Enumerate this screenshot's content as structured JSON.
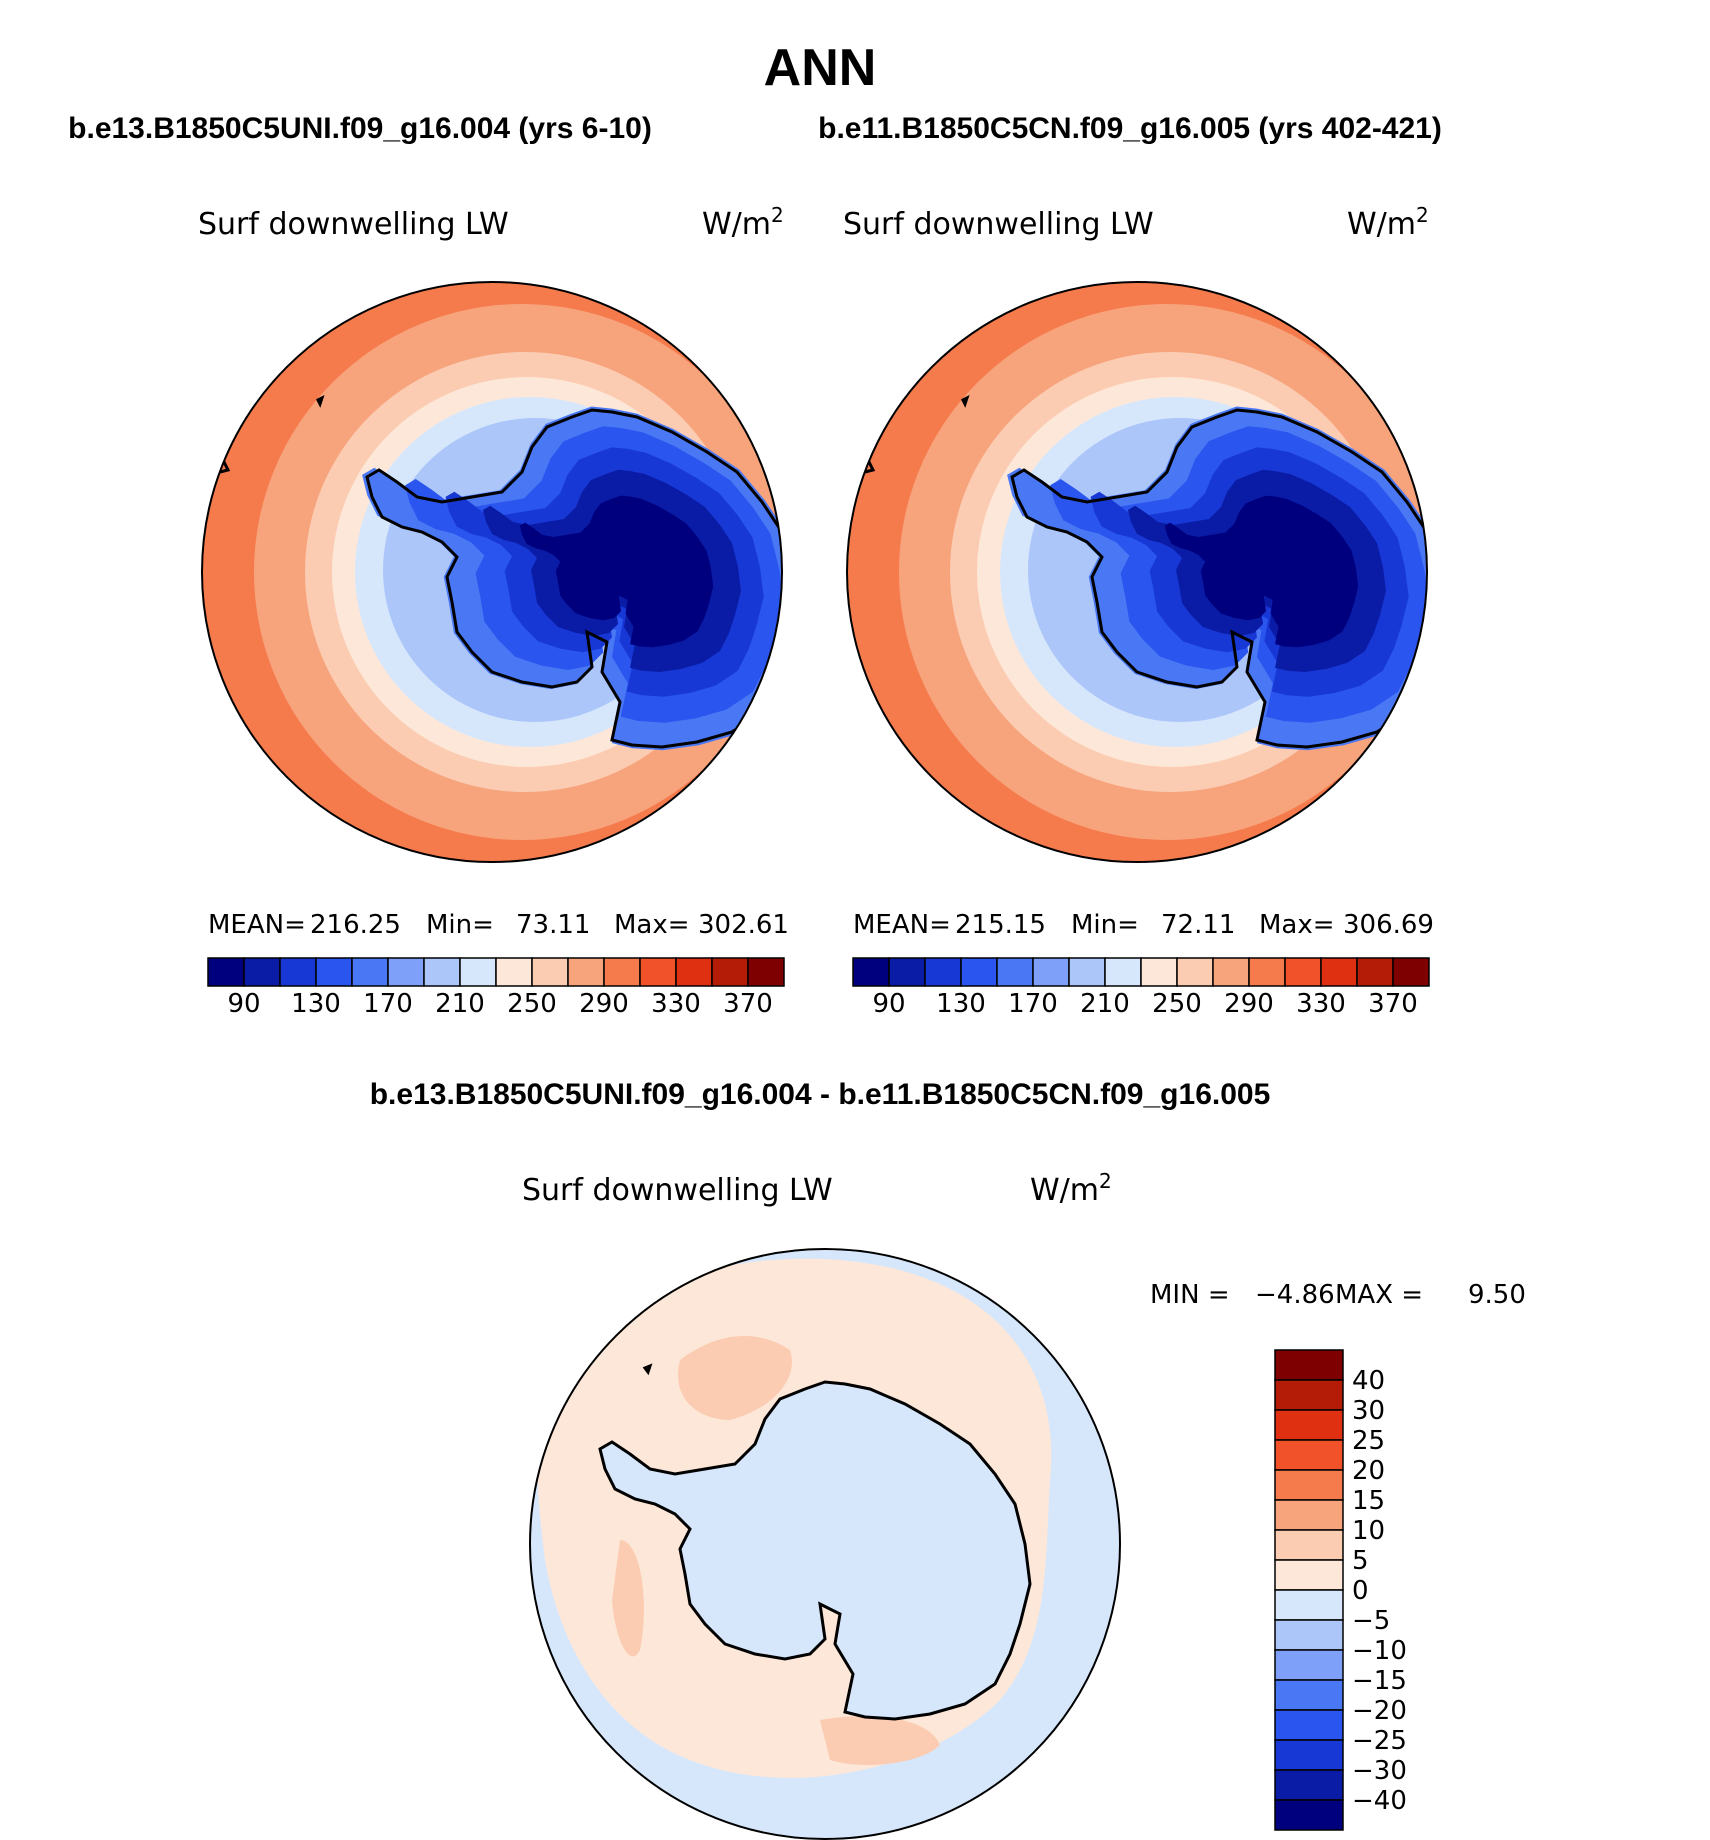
{
  "title": "ANN",
  "colors": {
    "level_fill": [
      "#00007f",
      "#0a1ca6",
      "#1838d6",
      "#2a55ee",
      "#4a78f5",
      "#7ea0f8",
      "#adc6fa",
      "#d6e7fc",
      "#fde7d8",
      "#fbccb2",
      "#f7a47c",
      "#f57b4c",
      "#f1522a",
      "#df3112",
      "#b51c07",
      "#7f0000"
    ],
    "land_outline": "#000000",
    "map_border": "#000000"
  },
  "panels": [
    {
      "run_title": "b.e13.B1850C5UNI.f09_g16.004 (yrs 6-10)",
      "variable": "Surf downwelling LW",
      "units_base": "W/m",
      "units_exp": "2",
      "stats": {
        "mean_label": "MEAN=",
        "mean": "216.25",
        "min_label": "Min=",
        "min": "73.11",
        "max_label": "Max=",
        "max": "302.61"
      },
      "colorbar_ticks": [
        "90",
        "130",
        "170",
        "210",
        "250",
        "290",
        "330",
        "370"
      ]
    },
    {
      "run_title": "b.e11.B1850C5CN.f09_g16.005 (yrs 402-421)",
      "variable": "Surf downwelling LW",
      "units_base": "W/m",
      "units_exp": "2",
      "stats": {
        "mean_label": "MEAN=",
        "mean": "215.15",
        "min_label": "Min=",
        "min": "72.11",
        "max_label": "Max=",
        "max": "306.69"
      },
      "colorbar_ticks": [
        "90",
        "130",
        "170",
        "210",
        "250",
        "290",
        "330",
        "370"
      ]
    }
  ],
  "difference": {
    "title": "b.e13.B1850C5UNI.f09_g16.004 - b.e11.B1850C5CN.f09_g16.005",
    "variable": "Surf downwelling LW",
    "units_base": "W/m",
    "units_exp": "2",
    "min_label": "MIN =",
    "min": "−4.86",
    "max_label": "MAX =",
    "max": "9.50",
    "levels": [
      "40",
      "30",
      "25",
      "20",
      "15",
      "10",
      "5",
      "0",
      "−5",
      "−10",
      "−15",
      "−20",
      "−25",
      "−30",
      "−40"
    ],
    "level_colors": [
      "#7f0000",
      "#b51c07",
      "#df3112",
      "#f1522a",
      "#f57b4c",
      "#f7a47c",
      "#fbccb2",
      "#fde7d8",
      "#d6e7fc",
      "#adc6fa",
      "#7ea0f8",
      "#4a78f5",
      "#2a55ee",
      "#1838d6",
      "#0a1ca6",
      "#00007f"
    ]
  }
}
